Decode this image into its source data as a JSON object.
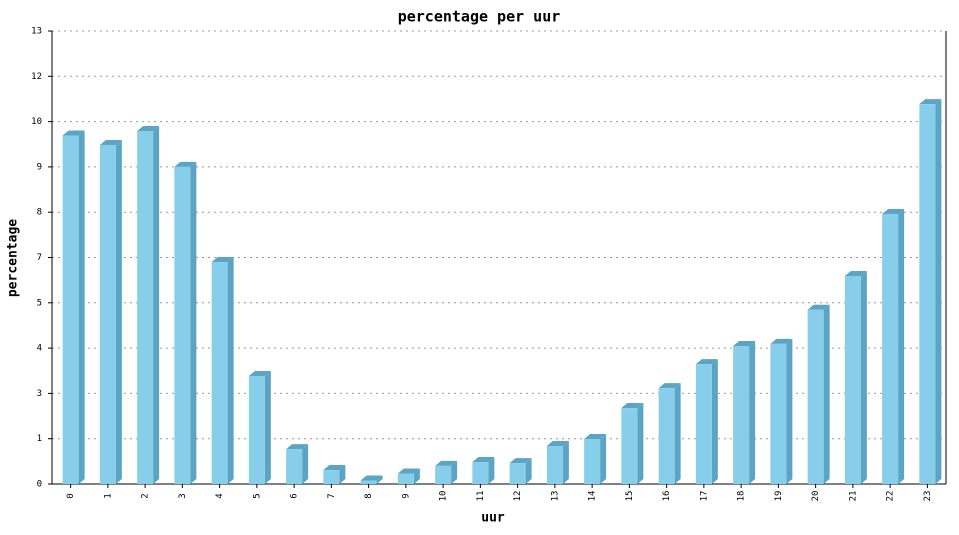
{
  "chart_data": {
    "type": "bar3d",
    "title": "percentage per uur",
    "xlabel": "uur",
    "ylabel": "percentage",
    "categories": [
      "0",
      "1",
      "2",
      "3",
      "4",
      "5",
      "6",
      "7",
      "8",
      "9",
      "10",
      "11",
      "12",
      "13",
      "14",
      "15",
      "16",
      "17",
      "18",
      "19",
      "20",
      "21",
      "22",
      "23"
    ],
    "values": [
      10.0,
      9.73,
      10.13,
      9.1,
      6.37,
      3.1,
      1.0,
      0.4,
      0.1,
      0.3,
      0.52,
      0.63,
      0.6,
      1.09,
      1.29,
      2.18,
      2.75,
      3.44,
      3.96,
      4.02,
      5.0,
      5.97,
      7.75,
      10.9
    ],
    "color": "#87ceeb",
    "side_color": "#5ba4c4",
    "ylim": [
      0,
      13
    ],
    "yticks": [
      0,
      {
        "value": 1.3,
        "label": "1"
      },
      {
        "value": 2.6,
        "label": "3"
      },
      {
        "value": 3.9,
        "label": "4"
      },
      {
        "value": 5.2,
        "label": "5"
      },
      {
        "value": 6.5,
        "label": "7"
      },
      {
        "value": 7.8,
        "label": "8"
      },
      {
        "value": 9.1,
        "label": "9"
      },
      {
        "value": 10.4,
        "label": "10"
      },
      {
        "value": 11.7,
        "label": "12"
      },
      13
    ],
    "grid": true
  }
}
